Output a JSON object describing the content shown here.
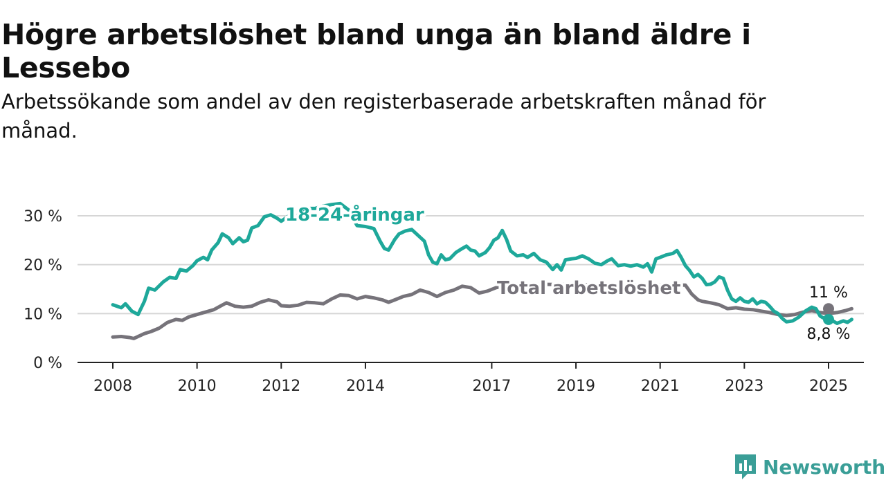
{
  "header": {
    "title": "Högre arbetslöshet bland unga än bland äldre i Lessebo",
    "subtitle": "Arbetssökande som andel av den registerbaserade arbetskraften månad för månad."
  },
  "brand": {
    "name": "Newsworthy",
    "icon": "newsworthy-logo-icon",
    "color": "#3a9e97"
  },
  "chart_data": {
    "type": "line",
    "x_ticks": [
      2008,
      2010,
      2012,
      2014,
      2017,
      2019,
      2021,
      2023,
      2025
    ],
    "y_ticks": [
      0,
      10,
      20,
      30
    ],
    "y_tick_labels": [
      "0 %",
      "10 %",
      "20 %",
      "30 %"
    ],
    "xlim": [
      2008,
      2025
    ],
    "ylim": [
      0,
      30
    ],
    "grid": "horizontal",
    "series": [
      {
        "name": "18-24-åringar",
        "color": "#1ea89a",
        "end_label": "8,8 %",
        "points": [
          [
            2008.0,
            11.8
          ],
          [
            2008.2,
            11.2
          ],
          [
            2008.3,
            12.0
          ],
          [
            2008.45,
            10.5
          ],
          [
            2008.6,
            9.8
          ],
          [
            2008.75,
            12.5
          ],
          [
            2008.85,
            15.2
          ],
          [
            2009.0,
            14.8
          ],
          [
            2009.2,
            16.5
          ],
          [
            2009.35,
            17.4
          ],
          [
            2009.5,
            17.2
          ],
          [
            2009.6,
            19.0
          ],
          [
            2009.75,
            18.7
          ],
          [
            2009.9,
            19.8
          ],
          [
            2010.0,
            20.8
          ],
          [
            2010.15,
            21.5
          ],
          [
            2010.25,
            21.0
          ],
          [
            2010.35,
            23.0
          ],
          [
            2010.5,
            24.5
          ],
          [
            2010.6,
            26.3
          ],
          [
            2010.75,
            25.5
          ],
          [
            2010.85,
            24.3
          ],
          [
            2011.0,
            25.5
          ],
          [
            2011.1,
            24.7
          ],
          [
            2011.2,
            25.0
          ],
          [
            2011.3,
            27.5
          ],
          [
            2011.45,
            28.0
          ],
          [
            2011.6,
            29.8
          ],
          [
            2011.75,
            30.2
          ],
          [
            2011.9,
            29.5
          ],
          [
            2012.0,
            28.9
          ],
          [
            2012.15,
            29.8
          ],
          [
            2012.25,
            30.5
          ],
          [
            2012.35,
            29.4
          ],
          [
            2012.45,
            30.9
          ],
          [
            2012.55,
            31.5
          ],
          [
            2012.8,
            31.5
          ],
          [
            2013.0,
            32.0
          ],
          [
            2013.2,
            32.3
          ],
          [
            2013.4,
            32.5
          ],
          [
            2013.6,
            31.2
          ],
          [
            2013.8,
            28.0
          ],
          [
            2014.0,
            27.8
          ],
          [
            2014.2,
            27.4
          ],
          [
            2014.35,
            24.8
          ],
          [
            2014.45,
            23.3
          ],
          [
            2014.55,
            23.0
          ],
          [
            2014.7,
            25.2
          ],
          [
            2014.8,
            26.3
          ],
          [
            2014.95,
            26.9
          ],
          [
            2015.1,
            27.2
          ],
          [
            2015.25,
            26.0
          ],
          [
            2015.4,
            24.8
          ],
          [
            2015.5,
            22.0
          ],
          [
            2015.6,
            20.5
          ],
          [
            2015.7,
            20.2
          ],
          [
            2015.8,
            22.0
          ],
          [
            2015.9,
            21.0
          ],
          [
            2016.0,
            21.2
          ],
          [
            2016.15,
            22.5
          ],
          [
            2016.3,
            23.3
          ],
          [
            2016.4,
            23.8
          ],
          [
            2016.5,
            23.0
          ],
          [
            2016.6,
            22.8
          ],
          [
            2016.7,
            21.8
          ],
          [
            2016.85,
            22.5
          ],
          [
            2016.95,
            23.5
          ],
          [
            2017.05,
            25.0
          ],
          [
            2017.15,
            25.5
          ],
          [
            2017.25,
            27.0
          ],
          [
            2017.35,
            25.2
          ],
          [
            2017.45,
            22.8
          ],
          [
            2017.6,
            21.8
          ],
          [
            2017.75,
            22.0
          ],
          [
            2017.85,
            21.5
          ],
          [
            2018.0,
            22.3
          ],
          [
            2018.15,
            21.0
          ],
          [
            2018.3,
            20.5
          ],
          [
            2018.45,
            19.0
          ],
          [
            2018.55,
            20.0
          ],
          [
            2018.65,
            18.9
          ],
          [
            2018.75,
            21.0
          ],
          [
            2018.9,
            21.2
          ],
          [
            2019.0,
            21.3
          ],
          [
            2019.15,
            21.8
          ],
          [
            2019.3,
            21.2
          ],
          [
            2019.45,
            20.3
          ],
          [
            2019.6,
            20.0
          ],
          [
            2019.75,
            20.8
          ],
          [
            2019.85,
            21.2
          ],
          [
            2020.0,
            19.8
          ],
          [
            2020.15,
            20.0
          ],
          [
            2020.3,
            19.7
          ],
          [
            2020.45,
            20.0
          ],
          [
            2020.6,
            19.5
          ],
          [
            2020.7,
            20.2
          ],
          [
            2020.8,
            18.5
          ],
          [
            2020.9,
            21.2
          ],
          [
            2021.0,
            21.5
          ],
          [
            2021.15,
            22.0
          ],
          [
            2021.3,
            22.3
          ],
          [
            2021.4,
            22.9
          ],
          [
            2021.5,
            21.5
          ],
          [
            2021.6,
            19.8
          ],
          [
            2021.7,
            18.8
          ],
          [
            2021.8,
            17.5
          ],
          [
            2021.9,
            18.0
          ],
          [
            2022.0,
            17.2
          ],
          [
            2022.1,
            15.9
          ],
          [
            2022.2,
            16.0
          ],
          [
            2022.3,
            16.5
          ],
          [
            2022.4,
            17.5
          ],
          [
            2022.5,
            17.2
          ],
          [
            2022.6,
            14.8
          ],
          [
            2022.7,
            13.0
          ],
          [
            2022.8,
            12.5
          ],
          [
            2022.9,
            13.2
          ],
          [
            2023.0,
            12.5
          ],
          [
            2023.1,
            12.3
          ],
          [
            2023.2,
            13.0
          ],
          [
            2023.3,
            12.0
          ],
          [
            2023.4,
            12.5
          ],
          [
            2023.5,
            12.3
          ],
          [
            2023.6,
            11.5
          ],
          [
            2023.7,
            10.5
          ],
          [
            2023.8,
            10.0
          ],
          [
            2023.9,
            9.0
          ],
          [
            2024.0,
            8.3
          ],
          [
            2024.15,
            8.5
          ],
          [
            2024.3,
            9.3
          ],
          [
            2024.45,
            10.5
          ],
          [
            2024.6,
            11.3
          ],
          [
            2024.7,
            11.0
          ],
          [
            2024.8,
            9.5
          ],
          [
            2024.9,
            9.0
          ],
          [
            2025.0,
            9.5
          ],
          [
            2025.1,
            8.5
          ],
          [
            2025.2,
            8.0
          ],
          [
            2025.35,
            8.5
          ],
          [
            2025.45,
            8.2
          ],
          [
            2025.55,
            8.8
          ]
        ]
      },
      {
        "name": "Total arbetslöshet",
        "color": "#76737a",
        "end_label": "11 %",
        "points": [
          [
            2008.0,
            5.2
          ],
          [
            2008.2,
            5.3
          ],
          [
            2008.4,
            5.1
          ],
          [
            2008.5,
            4.9
          ],
          [
            2008.6,
            5.3
          ],
          [
            2008.75,
            5.9
          ],
          [
            2008.9,
            6.3
          ],
          [
            2009.1,
            7.0
          ],
          [
            2009.3,
            8.2
          ],
          [
            2009.5,
            8.8
          ],
          [
            2009.65,
            8.6
          ],
          [
            2009.8,
            9.3
          ],
          [
            2010.0,
            9.8
          ],
          [
            2010.2,
            10.3
          ],
          [
            2010.4,
            10.8
          ],
          [
            2010.55,
            11.5
          ],
          [
            2010.7,
            12.2
          ],
          [
            2010.9,
            11.5
          ],
          [
            2011.1,
            11.3
          ],
          [
            2011.3,
            11.5
          ],
          [
            2011.5,
            12.3
          ],
          [
            2011.7,
            12.8
          ],
          [
            2011.9,
            12.4
          ],
          [
            2012.0,
            11.6
          ],
          [
            2012.2,
            11.5
          ],
          [
            2012.4,
            11.7
          ],
          [
            2012.6,
            12.3
          ],
          [
            2012.8,
            12.2
          ],
          [
            2013.0,
            12.0
          ],
          [
            2013.2,
            13.0
          ],
          [
            2013.4,
            13.8
          ],
          [
            2013.6,
            13.7
          ],
          [
            2013.8,
            13.0
          ],
          [
            2014.0,
            13.5
          ],
          [
            2014.2,
            13.2
          ],
          [
            2014.4,
            12.8
          ],
          [
            2014.55,
            12.3
          ],
          [
            2014.7,
            12.8
          ],
          [
            2014.9,
            13.5
          ],
          [
            2015.1,
            13.9
          ],
          [
            2015.3,
            14.8
          ],
          [
            2015.5,
            14.3
          ],
          [
            2015.7,
            13.5
          ],
          [
            2015.9,
            14.3
          ],
          [
            2016.1,
            14.8
          ],
          [
            2016.3,
            15.6
          ],
          [
            2016.5,
            15.3
          ],
          [
            2016.7,
            14.2
          ],
          [
            2016.9,
            14.6
          ],
          [
            2017.1,
            15.3
          ],
          [
            2017.25,
            15.6
          ],
          [
            2017.4,
            16.0
          ],
          [
            2021.6,
            15.8
          ],
          [
            2021.75,
            14.0
          ],
          [
            2021.9,
            12.8
          ],
          [
            2022.0,
            12.5
          ],
          [
            2022.2,
            12.2
          ],
          [
            2022.4,
            11.8
          ],
          [
            2022.6,
            11.0
          ],
          [
            2022.8,
            11.2
          ],
          [
            2023.0,
            10.9
          ],
          [
            2023.2,
            10.8
          ],
          [
            2023.4,
            10.5
          ],
          [
            2023.6,
            10.2
          ],
          [
            2023.8,
            9.8
          ],
          [
            2024.0,
            9.6
          ],
          [
            2024.2,
            9.8
          ],
          [
            2024.4,
            10.3
          ],
          [
            2024.6,
            10.6
          ],
          [
            2024.8,
            10.2
          ],
          [
            2025.0,
            10.0
          ],
          [
            2025.2,
            10.2
          ],
          [
            2025.4,
            10.6
          ],
          [
            2025.55,
            11.0
          ]
        ]
      }
    ]
  }
}
